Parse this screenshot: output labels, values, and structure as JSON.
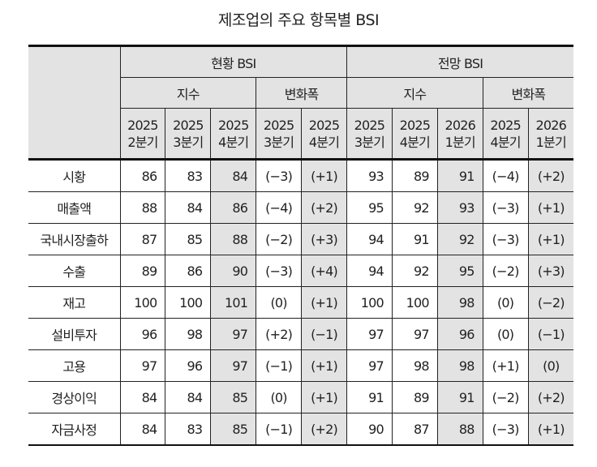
{
  "title": "제조업의 주요 항목별 BSI",
  "groups": [
    {
      "label": "현황 BSI",
      "sub": [
        "지수",
        "변화폭"
      ],
      "periods": [
        [
          "2025",
          "2분기"
        ],
        [
          "2025",
          "3분기"
        ],
        [
          "2025",
          "4분기"
        ],
        [
          "2025",
          "3분기"
        ],
        [
          "2025",
          "4분기"
        ]
      ]
    },
    {
      "label": "전망 BSI",
      "sub": [
        "지수",
        "변화폭"
      ],
      "periods": [
        [
          "2025",
          "3분기"
        ],
        [
          "2025",
          "4분기"
        ],
        [
          "2026",
          "1분기"
        ],
        [
          "2025",
          "4분기"
        ],
        [
          "2026",
          "1분기"
        ]
      ]
    }
  ],
  "rows": [
    {
      "label": "시황",
      "values": [
        "86",
        "83",
        "84",
        "(−3)",
        "(+1)",
        "93",
        "89",
        "91",
        "(−4)",
        "(+2)"
      ]
    },
    {
      "label": "매출액",
      "values": [
        "88",
        "84",
        "86",
        "(−4)",
        "(+2)",
        "95",
        "92",
        "93",
        "(−3)",
        "(+1)"
      ]
    },
    {
      "label": "국내시장출하",
      "values": [
        "87",
        "85",
        "88",
        "(−2)",
        "(+3)",
        "94",
        "91",
        "92",
        "(−3)",
        "(+1)"
      ]
    },
    {
      "label": "수출",
      "values": [
        "89",
        "86",
        "90",
        "(−3)",
        "(+4)",
        "94",
        "92",
        "95",
        "(−2)",
        "(+3)"
      ]
    },
    {
      "label": "재고",
      "values": [
        "100",
        "100",
        "101",
        "(0)",
        "(+1)",
        "100",
        "100",
        "98",
        "(0)",
        "(−2)"
      ]
    },
    {
      "label": "설비투자",
      "values": [
        "96",
        "98",
        "97",
        "(+2)",
        "(−1)",
        "97",
        "97",
        "96",
        "(0)",
        "(−1)"
      ]
    },
    {
      "label": "고용",
      "values": [
        "97",
        "96",
        "97",
        "(−1)",
        "(+1)",
        "97",
        "98",
        "98",
        "(+1)",
        "(0)"
      ]
    },
    {
      "label": "경상이익",
      "values": [
        "84",
        "84",
        "85",
        "(0)",
        "(+1)",
        "91",
        "89",
        "91",
        "(−2)",
        "(+2)"
      ]
    },
    {
      "label": "자금사정",
      "values": [
        "84",
        "83",
        "85",
        "(−1)",
        "(+2)",
        "90",
        "87",
        "88",
        "(−3)",
        "(+1)"
      ]
    }
  ]
}
